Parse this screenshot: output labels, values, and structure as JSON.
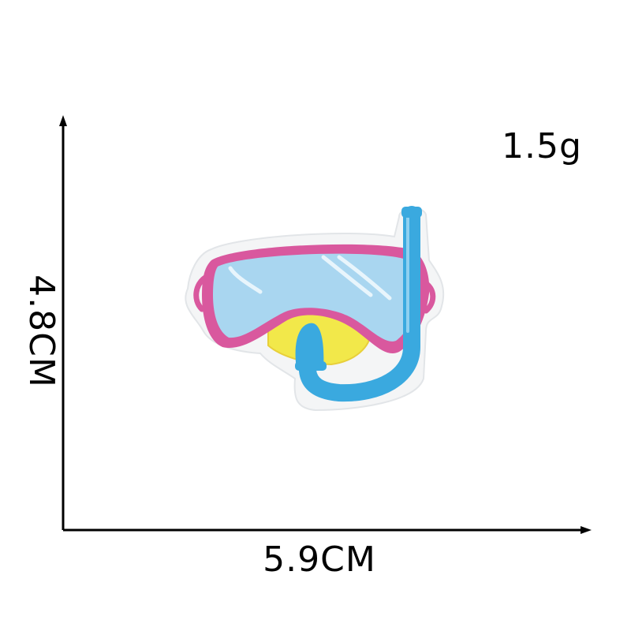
{
  "product": {
    "name": "snorkel-mask-embroidered-patch",
    "weight_text": "1.5g",
    "width_text": "5.9CM",
    "height_text": "4.8CM"
  },
  "colors": {
    "frame_pink": "#d9589e",
    "lens_blue": "#a9d6f0",
    "snorkel_blue": "#3aa9df",
    "mouth_yellow": "#f2e84a",
    "patch_border": "#eef0f2",
    "axis": "#000000"
  }
}
